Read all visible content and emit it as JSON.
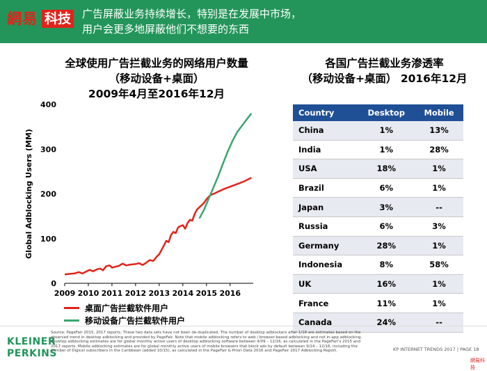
{
  "header": {
    "logo_part1": "網易",
    "logo_part2": "科技",
    "headline_line1": "广告屏蔽业务持续增长，特别是在发展中市场，",
    "headline_line2": "用户会更多地屏蔽他们不想要的东西",
    "bg_color": "#23955a"
  },
  "left_title": {
    "line1": "全球使用广告拦截业务的网络用户数量",
    "line2": "（移动设备+桌面）",
    "line3": "2009年4月至2016年12月"
  },
  "right_title": {
    "line1": "各国广告拦截业务渗透率",
    "line2": "（移动设备+桌面） 2016年12月"
  },
  "chart_data": {
    "type": "line",
    "title": "全球使用广告拦截业务的网络用户数量（移动设备+桌面） 2009年4月至2016年12月",
    "xlabel": "",
    "ylabel": "Global Adblocking Users (MM)",
    "xlim": [
      2009,
      2016.92
    ],
    "ylim": [
      0,
      400
    ],
    "x_ticks": [
      "2009",
      "2010",
      "2011",
      "2012",
      "2013",
      "2014",
      "2015",
      "2016"
    ],
    "y_ticks": [
      0,
      100,
      200,
      300,
      400
    ],
    "grid": false,
    "legend_position": "bottom-left",
    "series": [
      {
        "name": "桌面广告拦截软件用户",
        "color": "#e2231a",
        "points": [
          [
            2009.0,
            20
          ],
          [
            2009.2,
            21
          ],
          [
            2009.4,
            22
          ],
          [
            2009.6,
            25
          ],
          [
            2009.75,
            22
          ],
          [
            2009.9,
            26
          ],
          [
            2010.05,
            30
          ],
          [
            2010.2,
            27
          ],
          [
            2010.35,
            31
          ],
          [
            2010.5,
            33
          ],
          [
            2010.62,
            29
          ],
          [
            2010.75,
            38
          ],
          [
            2010.9,
            40
          ],
          [
            2011.0,
            35
          ],
          [
            2011.15,
            37
          ],
          [
            2011.3,
            39
          ],
          [
            2011.45,
            44
          ],
          [
            2011.6,
            40
          ],
          [
            2011.8,
            42
          ],
          [
            2012.0,
            43
          ],
          [
            2012.15,
            45
          ],
          [
            2012.3,
            41
          ],
          [
            2012.45,
            46
          ],
          [
            2012.6,
            52
          ],
          [
            2012.75,
            50
          ],
          [
            2012.9,
            60
          ],
          [
            2013.0,
            65
          ],
          [
            2013.1,
            75
          ],
          [
            2013.2,
            85
          ],
          [
            2013.3,
            95
          ],
          [
            2013.4,
            92
          ],
          [
            2013.5,
            108
          ],
          [
            2013.6,
            115
          ],
          [
            2013.7,
            112
          ],
          [
            2013.8,
            125
          ],
          [
            2013.9,
            128
          ],
          [
            2014.0,
            130
          ],
          [
            2014.1,
            122
          ],
          [
            2014.2,
            135
          ],
          [
            2014.3,
            142
          ],
          [
            2014.4,
            140
          ],
          [
            2014.5,
            155
          ],
          [
            2014.6,
            165
          ],
          [
            2014.7,
            170
          ],
          [
            2014.8,
            175
          ],
          [
            2014.9,
            180
          ],
          [
            2015.0,
            188
          ],
          [
            2015.1,
            194
          ],
          [
            2015.2,
            198
          ],
          [
            2015.3,
            200
          ],
          [
            2015.5,
            205
          ],
          [
            2015.7,
            210
          ],
          [
            2016.0,
            216
          ],
          [
            2016.3,
            222
          ],
          [
            2016.6,
            228
          ],
          [
            2016.9,
            236
          ]
        ]
      },
      {
        "name": "移动设备广告拦截软件用户",
        "color": "#3aa66e",
        "points": [
          [
            2014.7,
            145
          ],
          [
            2014.9,
            165
          ],
          [
            2015.1,
            190
          ],
          [
            2015.3,
            215
          ],
          [
            2015.5,
            240
          ],
          [
            2015.7,
            268
          ],
          [
            2015.9,
            295
          ],
          [
            2016.1,
            318
          ],
          [
            2016.3,
            338
          ],
          [
            2016.5,
            352
          ],
          [
            2016.7,
            366
          ],
          [
            2016.9,
            380
          ]
        ]
      }
    ]
  },
  "table": {
    "headers": [
      "Country",
      "Desktop",
      "Mobile"
    ],
    "header_bg": "#1f4f95",
    "rows": [
      [
        "China",
        "1%",
        "13%"
      ],
      [
        "India",
        "1%",
        "28%"
      ],
      [
        "USA",
        "18%",
        "1%"
      ],
      [
        "Brazil",
        "6%",
        "1%"
      ],
      [
        "Japan",
        "3%",
        "--"
      ],
      [
        "Russia",
        "6%",
        "3%"
      ],
      [
        "Germany",
        "28%",
        "1%"
      ],
      [
        "Indonesia",
        "8%",
        "58%"
      ],
      [
        "UK",
        "16%",
        "1%"
      ],
      [
        "France",
        "11%",
        "1%"
      ],
      [
        "Canada",
        "24%",
        "--"
      ]
    ]
  },
  "footer": {
    "brand_line1": "KLEINER",
    "brand_line2": "PERKINS",
    "source": "Source: PageFair 2015, 2017 reports. These two data sets have not been de-duplicated. The number of desktop adblockers after 1/16 are estimates based on the observed trend in desktop adblocking and provided by PageFair. Note that mobile adblocking refers to web / browser-based adblocking and not in-app adblocking. Desktop adblocking estimates are for global monthly active users of desktop adblocking software between 4/09 – 12/16, as calculated in the PageFair's 2015 and 2017 reports. Mobile adblocking estimates are for global monthly active users of mobile browsers that block ads by default between 9/14 – 12/16, including the number of Digicel subscribers in the Caribbean (added 10/15), as calculated in the PageFair & Priori Data 2016 and PageFair 2017 Adblocking Report.",
    "trends": "KP INTERNET TRENDS 2017  |  PAGE 18",
    "watermark": "網易科技"
  }
}
